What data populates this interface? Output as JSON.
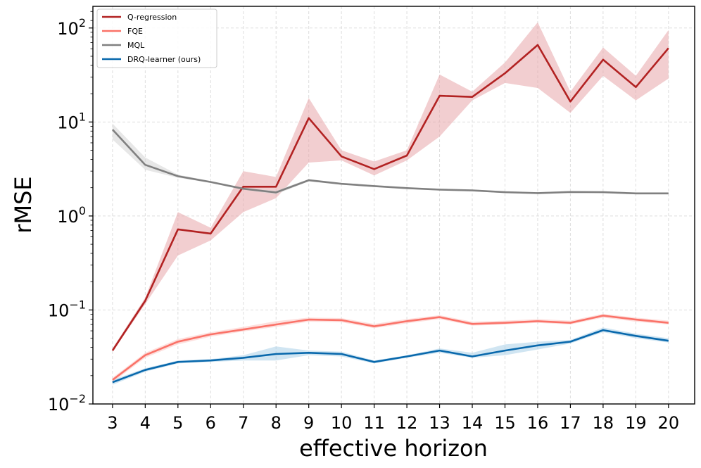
{
  "chart_data": {
    "type": "line",
    "xlabel": "effective horizon",
    "ylabel": "rMSE",
    "yscale": "log",
    "ylim": [
      0.01,
      170
    ],
    "xlim": [
      2.4,
      20.8
    ],
    "grid": true,
    "legend_position": "top-left",
    "x": [
      3,
      4,
      5,
      6,
      7,
      8,
      9,
      10,
      11,
      12,
      13,
      14,
      15,
      16,
      17,
      18,
      19,
      20
    ],
    "x_tick_labels": [
      "3",
      "4",
      "5",
      "6",
      "7",
      "8",
      "9",
      "10",
      "11",
      "12",
      "13",
      "14",
      "15",
      "16",
      "17",
      "18",
      "19",
      "20"
    ],
    "y_ticks": [
      {
        "value": 0.01,
        "base": "10",
        "exp": "−2"
      },
      {
        "value": 0.1,
        "base": "10",
        "exp": "−1"
      },
      {
        "value": 1,
        "base": "10",
        "exp": "0"
      },
      {
        "value": 10,
        "base": "10",
        "exp": "1"
      },
      {
        "value": 100,
        "base": "10",
        "exp": "2"
      }
    ],
    "series": [
      {
        "name": "Q-regression",
        "color": "#b22222",
        "band_color": "#e8a6a9",
        "values": [
          0.037,
          0.125,
          0.72,
          0.65,
          2.05,
          2.05,
          11.0,
          4.3,
          3.15,
          4.4,
          19.0,
          18.5,
          33.0,
          66.0,
          16.5,
          46.0,
          23.5,
          61.0
        ],
        "lower": [
          0.036,
          0.115,
          0.38,
          0.55,
          1.1,
          1.55,
          3.7,
          3.9,
          2.7,
          3.9,
          7.0,
          17.0,
          26.0,
          23.0,
          12.5,
          31.0,
          17.0,
          29.0
        ],
        "upper": [
          0.039,
          0.135,
          1.1,
          0.75,
          3.0,
          2.6,
          18.0,
          5.0,
          3.8,
          5.0,
          32.0,
          21.0,
          43.0,
          115.0,
          21.0,
          62.0,
          31.0,
          95.0
        ]
      },
      {
        "name": "FQE",
        "color": "#fa7268",
        "band_color": "#fcc6c2",
        "values": [
          0.018,
          0.033,
          0.046,
          0.055,
          0.062,
          0.07,
          0.079,
          0.078,
          0.067,
          0.076,
          0.084,
          0.071,
          0.073,
          0.076,
          0.073,
          0.087,
          0.079,
          0.073
        ],
        "lower": [
          0.017,
          0.031,
          0.043,
          0.052,
          0.059,
          0.066,
          0.075,
          0.074,
          0.064,
          0.072,
          0.08,
          0.068,
          0.07,
          0.073,
          0.07,
          0.083,
          0.075,
          0.07
        ],
        "upper": [
          0.019,
          0.035,
          0.049,
          0.058,
          0.066,
          0.076,
          0.083,
          0.082,
          0.071,
          0.08,
          0.088,
          0.075,
          0.077,
          0.08,
          0.077,
          0.091,
          0.083,
          0.077
        ]
      },
      {
        "name": "MQL",
        "color": "#808080",
        "band_color": "#d3d3d3",
        "values": [
          8.3,
          3.5,
          2.65,
          2.3,
          1.95,
          1.78,
          2.4,
          2.2,
          2.08,
          1.98,
          1.91,
          1.87,
          1.79,
          1.75,
          1.8,
          1.79,
          1.74,
          1.74
        ],
        "lower": [
          6.5,
          3.1,
          2.55,
          2.25,
          1.9,
          1.7,
          2.33,
          2.15,
          2.03,
          1.94,
          1.87,
          1.83,
          1.75,
          1.71,
          1.76,
          1.75,
          1.7,
          1.7
        ],
        "upper": [
          9.6,
          4.2,
          2.75,
          2.35,
          2.0,
          1.86,
          2.47,
          2.25,
          2.13,
          2.02,
          1.95,
          1.91,
          1.83,
          1.79,
          1.84,
          1.83,
          1.78,
          1.78
        ]
      },
      {
        "name": "DRQ-learner (ours)",
        "color": "#0868ac",
        "band_color": "#a9cfe8",
        "values": [
          0.017,
          0.023,
          0.028,
          0.029,
          0.031,
          0.034,
          0.035,
          0.034,
          0.028,
          0.032,
          0.037,
          0.032,
          0.037,
          0.042,
          0.046,
          0.061,
          0.053,
          0.047
        ],
        "lower": [
          0.016,
          0.022,
          0.027,
          0.028,
          0.029,
          0.029,
          0.033,
          0.032,
          0.027,
          0.031,
          0.035,
          0.031,
          0.033,
          0.038,
          0.044,
          0.058,
          0.05,
          0.045
        ],
        "upper": [
          0.018,
          0.024,
          0.029,
          0.03,
          0.033,
          0.041,
          0.037,
          0.036,
          0.029,
          0.033,
          0.039,
          0.035,
          0.043,
          0.046,
          0.048,
          0.065,
          0.056,
          0.05
        ]
      }
    ]
  }
}
